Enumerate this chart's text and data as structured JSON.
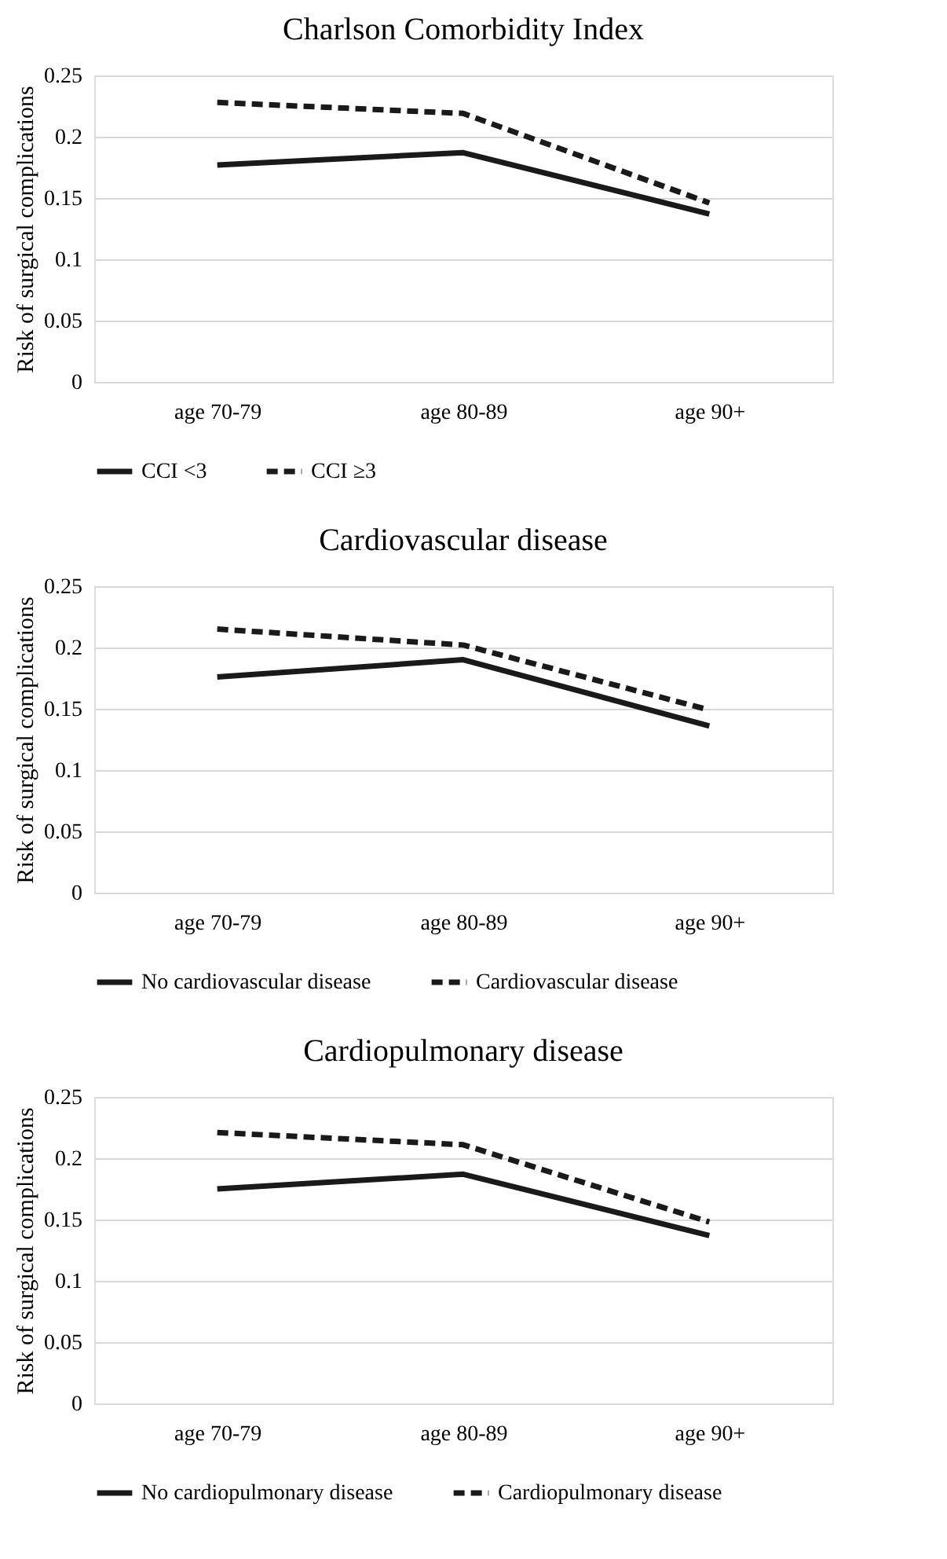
{
  "chart_data": [
    {
      "type": "line",
      "title": "Charlson Comorbidity Index",
      "ylabel": "Risk of surgical complications",
      "categories": [
        "age 70-79",
        "age 80-89",
        "age 90+"
      ],
      "ylim": [
        0,
        0.25
      ],
      "yticks": [
        0,
        0.05,
        0.1,
        0.15,
        0.2,
        0.25
      ],
      "grid": "y",
      "legend": "bottom",
      "marker": "none",
      "series": [
        {
          "name": "CCI <3",
          "color": "#1a1a1a",
          "line_style": "solid",
          "values": [
            0.177,
            0.187,
            0.137
          ]
        },
        {
          "name": "CCI ≥3",
          "color": "#1a1a1a",
          "line_style": "dashed",
          "values": [
            0.228,
            0.219,
            0.146
          ]
        }
      ]
    },
    {
      "type": "line",
      "title": "Cardiovascular disease",
      "ylabel": "Risk of surgical complications",
      "categories": [
        "age 70-79",
        "age 80-89",
        "age 90+"
      ],
      "ylim": [
        0,
        0.25
      ],
      "yticks": [
        0,
        0.05,
        0.1,
        0.15,
        0.2,
        0.25
      ],
      "grid": "y",
      "legend": "bottom",
      "marker": "none",
      "series": [
        {
          "name": "No cardiovascular disease",
          "color": "#1a1a1a",
          "line_style": "solid",
          "values": [
            0.176,
            0.19,
            0.136
          ]
        },
        {
          "name": "Cardiovascular disease",
          "color": "#1a1a1a",
          "line_style": "dashed",
          "values": [
            0.215,
            0.202,
            0.149
          ]
        }
      ]
    },
    {
      "type": "line",
      "title": "Cardiopulmonary disease",
      "ylabel": "Risk of surgical complications",
      "categories": [
        "age 70-79",
        "age 80-89",
        "age 90+"
      ],
      "ylim": [
        0,
        0.25
      ],
      "yticks": [
        0,
        0.05,
        0.1,
        0.15,
        0.2,
        0.25
      ],
      "grid": "y",
      "legend": "bottom",
      "marker": "none",
      "series": [
        {
          "name": "No cardiopulmonary disease",
          "color": "#1a1a1a",
          "line_style": "solid",
          "values": [
            0.175,
            0.187,
            0.137
          ]
        },
        {
          "name": "Cardiopulmonary disease",
          "color": "#1a1a1a",
          "line_style": "dashed",
          "values": [
            0.221,
            0.211,
            0.148
          ]
        }
      ]
    }
  ]
}
